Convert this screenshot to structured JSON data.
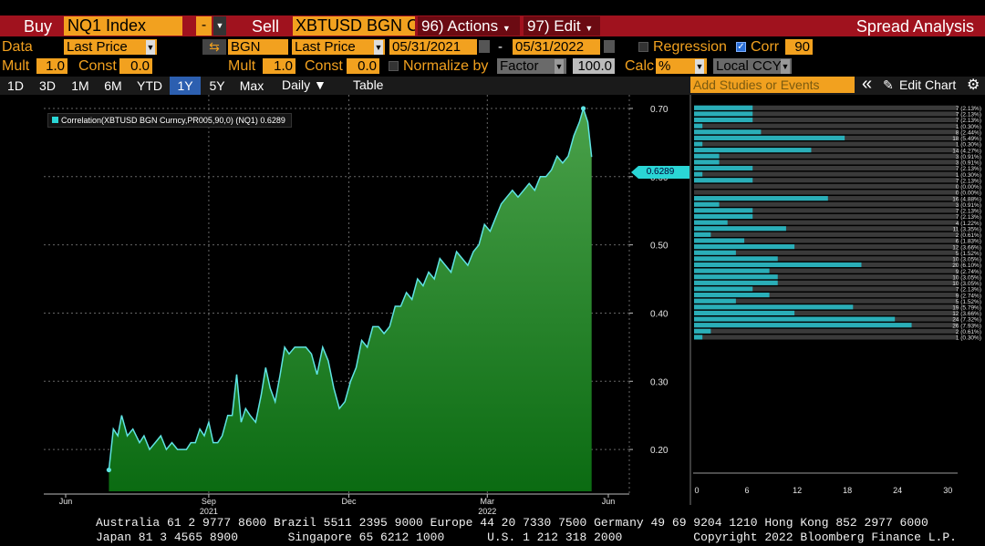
{
  "toolbar": {
    "buy_label": "Buy",
    "buy_value": "NQ1 Index",
    "minus": "-",
    "sell_label": "Sell",
    "sell_value": "XBTUSD BGN C",
    "actions": "96) Actions",
    "edit": "97) Edit",
    "title": "Spread Analysis"
  },
  "row_data": {
    "label": "Data",
    "field1": "Last Price",
    "source": "BGN",
    "field2": "Last Price",
    "start_date": "05/31/2021",
    "dash": "-",
    "end_date": "05/31/2022",
    "regression_label": "Regression",
    "regression_checked": false,
    "corr_label": "Corr",
    "corr_checked": true,
    "corr_window": "90"
  },
  "row_mult": {
    "mult1_label": "Mult",
    "mult1_value": "1.0",
    "const1_label": "Const",
    "const1_value": "0.0",
    "mult2_label": "Mult",
    "mult2_value": "1.0",
    "const2_label": "Const",
    "const2_value": "0.0",
    "normalize_label": "Normalize by",
    "normalize_checked": false,
    "normalize_value": "Factor",
    "normalize_num": "100.0",
    "calc_label": "Calc",
    "calc_value": "%",
    "ccy_value": "Local CCY"
  },
  "range_tabs": [
    "1D",
    "3D",
    "1M",
    "6M",
    "YTD",
    "1Y",
    "5Y",
    "Max"
  ],
  "active_tab": "1Y",
  "periodicity": "Daily ▼",
  "table_label": "Table",
  "studies_placeholder": "Add Studies or Events",
  "collapse_icon": "«",
  "edit_chart_label": "Edit Chart",
  "chart_data": {
    "type": "area",
    "legend": "Correlation(XBTUSD BGN Curncy,PR005,90,0) (NQ1) 0.6289",
    "last_value_label": "0.6289",
    "last_value": 0.6289,
    "ylim": [
      0.14,
      0.72
    ],
    "y_ticks": [
      0.2,
      0.3,
      0.4,
      0.5,
      0.6,
      0.7
    ],
    "y_tick_labels": [
      "0.20",
      "0.30",
      "0.40",
      "0.50",
      "0.60",
      "0.70"
    ],
    "x_ticks": [
      {
        "label": "Jun",
        "year": "",
        "t": 0.0
      },
      {
        "label": "Sep",
        "year": "2021",
        "t": 0.276
      },
      {
        "label": "Dec",
        "year": "",
        "t": 0.527
      },
      {
        "label": "Mar",
        "year": "2022",
        "t": 0.775
      },
      {
        "label": "Jun",
        "year": "",
        "t": 1.0
      }
    ],
    "series_t": [
      0.097,
      0.105,
      0.113,
      0.12,
      0.13,
      0.14,
      0.152,
      0.16,
      0.17,
      0.18,
      0.19,
      0.2,
      0.21,
      0.22,
      0.228,
      0.236,
      0.244,
      0.252,
      0.26,
      0.268,
      0.276,
      0.284,
      0.292,
      0.3,
      0.31,
      0.318,
      0.326,
      0.334,
      0.342,
      0.35,
      0.36,
      0.37,
      0.378,
      0.386,
      0.395,
      0.404,
      0.412,
      0.42,
      0.43,
      0.44,
      0.45,
      0.46,
      0.47,
      0.48,
      0.49,
      0.5,
      0.51,
      0.52,
      0.53,
      0.54,
      0.55,
      0.56,
      0.57,
      0.58,
      0.59,
      0.6,
      0.61,
      0.62,
      0.63,
      0.64,
      0.65,
      0.66,
      0.67,
      0.68,
      0.69,
      0.7,
      0.71,
      0.72,
      0.73,
      0.74,
      0.75,
      0.76,
      0.77,
      0.78,
      0.79,
      0.8,
      0.81,
      0.82,
      0.83,
      0.84,
      0.85,
      0.86,
      0.87,
      0.88,
      0.89,
      0.9,
      0.91,
      0.92,
      0.93,
      0.94,
      0.947,
      0.955,
      0.962
    ],
    "series_y": [
      0.17,
      0.23,
      0.22,
      0.25,
      0.22,
      0.23,
      0.21,
      0.22,
      0.2,
      0.21,
      0.22,
      0.2,
      0.21,
      0.2,
      0.2,
      0.2,
      0.21,
      0.21,
      0.23,
      0.22,
      0.24,
      0.21,
      0.21,
      0.22,
      0.25,
      0.25,
      0.31,
      0.24,
      0.26,
      0.25,
      0.24,
      0.28,
      0.32,
      0.29,
      0.27,
      0.31,
      0.35,
      0.34,
      0.35,
      0.35,
      0.35,
      0.34,
      0.31,
      0.35,
      0.33,
      0.29,
      0.26,
      0.27,
      0.3,
      0.32,
      0.36,
      0.35,
      0.38,
      0.38,
      0.37,
      0.38,
      0.41,
      0.41,
      0.43,
      0.42,
      0.45,
      0.44,
      0.46,
      0.45,
      0.48,
      0.47,
      0.46,
      0.49,
      0.48,
      0.47,
      0.49,
      0.5,
      0.53,
      0.52,
      0.54,
      0.56,
      0.57,
      0.58,
      0.57,
      0.58,
      0.59,
      0.58,
      0.6,
      0.6,
      0.61,
      0.63,
      0.62,
      0.63,
      0.66,
      0.68,
      0.7,
      0.68,
      0.6289
    ],
    "histogram": {
      "x_ticks": [
        0,
        6,
        12,
        18,
        24,
        30
      ],
      "counts": [
        7,
        7,
        7,
        1,
        8,
        18,
        1,
        14,
        3,
        3,
        7,
        1,
        7,
        0,
        0,
        16,
        3,
        7,
        7,
        4,
        11,
        2,
        6,
        12,
        5,
        10,
        20,
        9,
        10,
        10,
        7,
        9,
        5,
        19,
        12,
        24,
        26,
        2,
        1
      ],
      "labels": [
        "7 (2.13%)",
        "7 (2.13%)",
        "7 (2.13%)",
        "1 (0.30%)",
        "8 (2.44%)",
        "18 (5.49%)",
        "1 (0.30%)",
        "14 (4.27%)",
        "3 (0.91%)",
        "3 (0.91%)",
        "7 (2.13%)",
        "1 (0.30%)",
        "7 (2.13%)",
        "0 (0.00%)",
        "0 (0.00%)",
        "16 (4.88%)",
        "3 (0.91%)",
        "7 (2.13%)",
        "7 (2.13%)",
        "4 (1.22%)",
        "11 (3.35%)",
        "2 (0.61%)",
        "6 (1.83%)",
        "12 (3.66%)",
        "5 (1.52%)",
        "10 (3.05%)",
        "20 (6.10%)",
        "9 (2.74%)",
        "10 (3.05%)",
        "10 (3.05%)",
        "7 (2.13%)",
        "9 (2.74%)",
        "5 (1.52%)",
        "19 (5.79%)",
        "12 (3.66%)",
        "24 (7.32%)",
        "26 (7.93%)",
        "2 (0.61%)",
        "1 (0.30%)"
      ]
    },
    "colors": {
      "area_top": "#4aa14a",
      "area_bottom": "#0b6b12",
      "line": "#5fe3e3",
      "bars": "#2aaeb8"
    }
  },
  "footer": {
    "line1": "Australia 61 2 9777 8600 Brazil 5511 2395 9000 Europe 44 20 7330 7500 Germany 49 69 9204 1210 Hong Kong 852 2977 6000",
    "line2": "Japan 81 3 4565 8900       Singapore 65 6212 1000      U.S. 1 212 318 2000          Copyright 2022 Bloomberg Finance L.P."
  }
}
